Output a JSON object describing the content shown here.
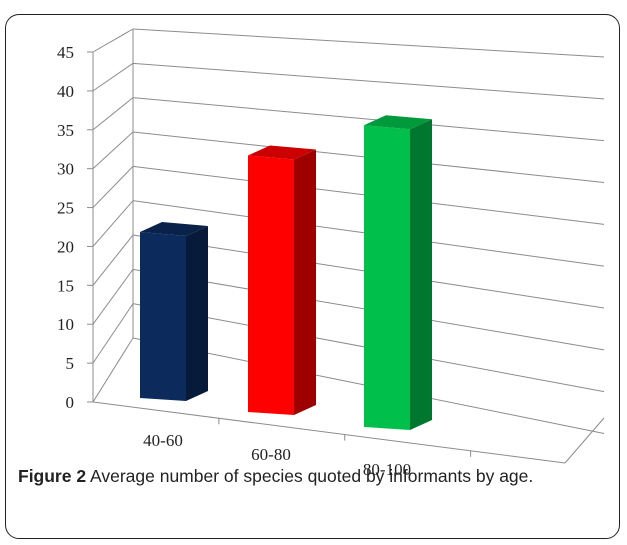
{
  "chart_data": {
    "type": "bar",
    "style": "3d-column",
    "categories": [
      "40-60",
      "60-80",
      "80-100"
    ],
    "values": [
      22,
      34,
      40
    ],
    "colors": [
      "#0d2a5c",
      "#ff0000",
      "#00c04b"
    ],
    "ylim": [
      0,
      45
    ],
    "yticks": [
      0,
      5,
      10,
      15,
      20,
      25,
      30,
      35,
      40,
      45
    ],
    "grid": true,
    "legend": "none",
    "title": "",
    "xlabel": "",
    "ylabel": ""
  },
  "caption": {
    "label": "Figure 2",
    "text": "Average number of species quoted by informants by age."
  }
}
